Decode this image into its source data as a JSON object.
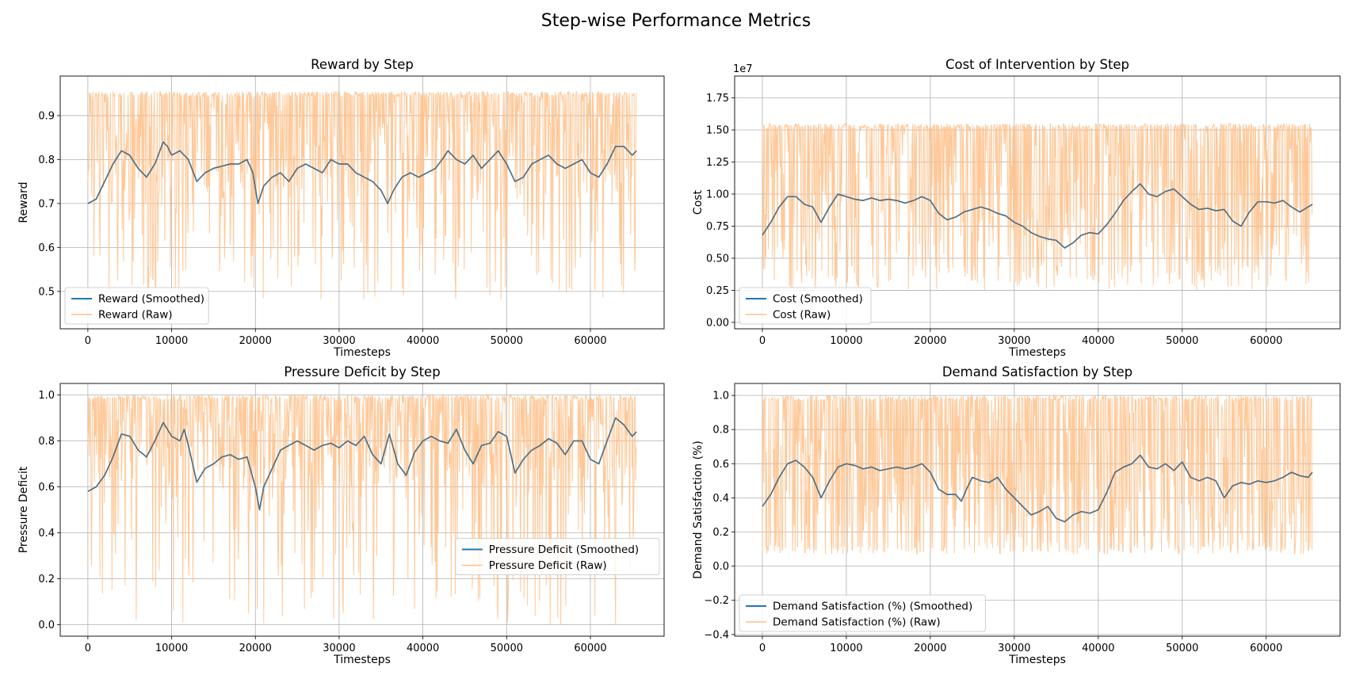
{
  "figure": {
    "title": "Step-wise Performance Metrics",
    "colors": {
      "smoothed": "#1f77b4",
      "raw": "#ffbe86",
      "overlap": "#4f7184",
      "grid": "#b0b0b0"
    }
  },
  "chart_data": [
    {
      "type": "line",
      "title": "Reward by Step",
      "xlabel": "Timesteps",
      "ylabel": "Reward",
      "offset_label": "",
      "xlim": [
        -3300,
        68800
      ],
      "ylim": [
        0.415,
        0.99
      ],
      "xticks": [
        0,
        10000,
        20000,
        30000,
        40000,
        50000,
        60000
      ],
      "yticks": [
        0.5,
        0.6,
        0.7,
        0.8,
        0.9
      ],
      "ytick_labels": [
        "0.5",
        "0.6",
        "0.7",
        "0.8",
        "0.9"
      ],
      "grid": true,
      "legend_position": "lower left",
      "raw_band": {
        "top": 0.955,
        "typical_low": 0.7,
        "deep_low": 0.48
      },
      "series": [
        {
          "name": "Reward (Smoothed)",
          "style": "smoothed",
          "x": [
            0,
            1000,
            2000,
            3000,
            4000,
            5000,
            6000,
            7000,
            8000,
            9000,
            9500,
            10000,
            11000,
            12000,
            13000,
            14000,
            15000,
            16000,
            17000,
            18000,
            19000,
            19700,
            20300,
            21000,
            22000,
            23000,
            24000,
            25000,
            26000,
            27000,
            28000,
            29000,
            30000,
            31000,
            32000,
            33000,
            34000,
            35000,
            35800,
            36500,
            37500,
            38500,
            39500,
            40500,
            41500,
            42300,
            43000,
            44000,
            45000,
            46000,
            47000,
            48000,
            49000,
            50000,
            51000,
            52000,
            53000,
            54000,
            55000,
            56000,
            57000,
            58000,
            59000,
            60000,
            61000,
            62000,
            63000,
            64000,
            65000,
            65500
          ],
          "values": [
            0.7,
            0.71,
            0.75,
            0.79,
            0.82,
            0.81,
            0.78,
            0.76,
            0.79,
            0.84,
            0.83,
            0.81,
            0.82,
            0.8,
            0.75,
            0.77,
            0.78,
            0.785,
            0.79,
            0.79,
            0.8,
            0.77,
            0.7,
            0.74,
            0.76,
            0.77,
            0.75,
            0.78,
            0.79,
            0.78,
            0.77,
            0.8,
            0.79,
            0.79,
            0.77,
            0.76,
            0.75,
            0.73,
            0.7,
            0.73,
            0.76,
            0.77,
            0.76,
            0.77,
            0.78,
            0.8,
            0.82,
            0.8,
            0.79,
            0.81,
            0.78,
            0.8,
            0.82,
            0.79,
            0.75,
            0.76,
            0.79,
            0.8,
            0.81,
            0.79,
            0.78,
            0.79,
            0.8,
            0.77,
            0.76,
            0.79,
            0.83,
            0.83,
            0.81,
            0.82
          ]
        },
        {
          "name": "Reward (Raw)",
          "style": "raw"
        }
      ]
    },
    {
      "type": "line",
      "title": "Cost of Intervention by Step",
      "xlabel": "Timesteps",
      "ylabel": "Cost",
      "offset_label": "1e7",
      "xlim": [
        -3300,
        68800
      ],
      "ylim": [
        -0.05,
        1.92
      ],
      "xticks": [
        0,
        10000,
        20000,
        30000,
        40000,
        50000,
        60000
      ],
      "yticks": [
        0,
        0.25,
        0.5,
        0.75,
        1.0,
        1.25,
        1.5,
        1.75
      ],
      "ytick_labels": [
        "0.00",
        "0.25",
        "0.50",
        "0.75",
        "1.00",
        "1.25",
        "1.50",
        "1.75"
      ],
      "grid": true,
      "legend_position": "lower left",
      "raw_band": {
        "top": 1.55,
        "typical_low": 0.45,
        "deep_low": 0.25
      },
      "series": [
        {
          "name": "Cost (Smoothed)",
          "style": "smoothed",
          "x": [
            0,
            1000,
            2000,
            3000,
            4000,
            5000,
            6000,
            7000,
            8000,
            9000,
            10000,
            11000,
            12000,
            13000,
            14000,
            15000,
            16000,
            17000,
            18000,
            19000,
            20000,
            21000,
            22000,
            23000,
            24000,
            25000,
            26000,
            27000,
            28000,
            29000,
            30000,
            31000,
            32000,
            33000,
            34000,
            35000,
            36000,
            37000,
            38000,
            39000,
            40000,
            41000,
            42000,
            43000,
            44000,
            45000,
            46000,
            47000,
            48000,
            49000,
            50000,
            51000,
            52000,
            53000,
            54000,
            55000,
            56000,
            57000,
            58000,
            59000,
            60000,
            61000,
            62000,
            63000,
            64000,
            65000,
            65500
          ],
          "values": [
            0.68,
            0.78,
            0.9,
            0.98,
            0.98,
            0.92,
            0.9,
            0.78,
            0.9,
            1.0,
            0.98,
            0.96,
            0.95,
            0.97,
            0.95,
            0.96,
            0.95,
            0.93,
            0.95,
            0.98,
            0.95,
            0.85,
            0.8,
            0.82,
            0.86,
            0.88,
            0.9,
            0.88,
            0.85,
            0.83,
            0.78,
            0.75,
            0.7,
            0.67,
            0.65,
            0.64,
            0.58,
            0.62,
            0.68,
            0.7,
            0.69,
            0.76,
            0.85,
            0.95,
            1.02,
            1.08,
            1.0,
            0.98,
            1.02,
            1.04,
            0.98,
            0.92,
            0.88,
            0.89,
            0.87,
            0.88,
            0.79,
            0.75,
            0.86,
            0.94,
            0.94,
            0.93,
            0.95,
            0.9,
            0.86,
            0.9,
            0.92
          ]
        },
        {
          "name": "Cost (Raw)",
          "style": "raw"
        }
      ]
    },
    {
      "type": "line",
      "title": "Pressure Deficit by Step",
      "xlabel": "Timesteps",
      "ylabel": "Pressure Deficit",
      "offset_label": "",
      "xlim": [
        -3300,
        68800
      ],
      "ylim": [
        -0.05,
        1.05
      ],
      "xticks": [
        0,
        10000,
        20000,
        30000,
        40000,
        50000,
        60000
      ],
      "yticks": [
        0,
        0.2,
        0.4,
        0.6,
        0.8,
        1.0
      ],
      "ytick_labels": [
        "0.0",
        "0.2",
        "0.4",
        "0.6",
        "0.8",
        "1.0"
      ],
      "grid": true,
      "legend_position": "center right",
      "raw_band": {
        "top": 1.0,
        "typical_low": 0.6,
        "deep_low": 0.0
      },
      "series": [
        {
          "name": "Pressure Deficit (Smoothed)",
          "style": "smoothed",
          "x": [
            0,
            1000,
            2000,
            3000,
            4000,
            5000,
            6000,
            7000,
            8000,
            9000,
            10000,
            11000,
            11500,
            12000,
            13000,
            14000,
            15000,
            16000,
            17000,
            18000,
            19000,
            20000,
            20500,
            21000,
            22000,
            23000,
            24000,
            25000,
            26000,
            27000,
            28000,
            29000,
            30000,
            31000,
            32000,
            33000,
            34000,
            35000,
            36000,
            37000,
            38000,
            39000,
            40000,
            41000,
            42000,
            43000,
            44000,
            45000,
            46000,
            47000,
            48000,
            49000,
            50000,
            51000,
            52000,
            53000,
            54000,
            55000,
            56000,
            57000,
            58000,
            59000,
            60000,
            61000,
            62000,
            63000,
            64000,
            65000,
            65500
          ],
          "values": [
            0.58,
            0.6,
            0.65,
            0.73,
            0.83,
            0.82,
            0.76,
            0.73,
            0.8,
            0.88,
            0.82,
            0.8,
            0.85,
            0.78,
            0.62,
            0.68,
            0.7,
            0.73,
            0.74,
            0.72,
            0.73,
            0.6,
            0.5,
            0.6,
            0.68,
            0.76,
            0.78,
            0.8,
            0.78,
            0.76,
            0.78,
            0.79,
            0.77,
            0.8,
            0.78,
            0.82,
            0.74,
            0.7,
            0.83,
            0.7,
            0.65,
            0.75,
            0.8,
            0.82,
            0.8,
            0.79,
            0.85,
            0.76,
            0.7,
            0.78,
            0.79,
            0.84,
            0.82,
            0.66,
            0.72,
            0.76,
            0.78,
            0.81,
            0.79,
            0.74,
            0.8,
            0.8,
            0.72,
            0.7,
            0.8,
            0.9,
            0.87,
            0.82,
            0.84
          ]
        },
        {
          "name": "Pressure Deficit (Raw)",
          "style": "raw"
        }
      ]
    },
    {
      "type": "line",
      "title": "Demand Satisfaction by Step",
      "xlabel": "Timesteps",
      "ylabel": "Demand Satisfaction (%)",
      "offset_label": "",
      "xlim": [
        -3300,
        68800
      ],
      "ylim": [
        -0.41,
        1.07
      ],
      "xticks": [
        0,
        10000,
        20000,
        30000,
        40000,
        50000,
        60000
      ],
      "yticks": [
        -0.4,
        -0.2,
        0,
        0.2,
        0.4,
        0.6,
        0.8,
        1.0
      ],
      "ytick_labels": [
        "−0.4",
        "−0.2",
        "0.0",
        "0.2",
        "0.4",
        "0.6",
        "0.8",
        "1.0"
      ],
      "grid": true,
      "legend_position": "lower left",
      "raw_band": {
        "top": 1.0,
        "typical_low": 0.12,
        "deep_low": 0.07
      },
      "series": [
        {
          "name": "Demand Satisfaction (%) (Smoothed)",
          "style": "smoothed",
          "x": [
            0,
            1000,
            2000,
            3000,
            4000,
            5000,
            6000,
            7000,
            8000,
            9000,
            10000,
            11000,
            12000,
            13000,
            14000,
            15000,
            16000,
            17000,
            18000,
            19000,
            20000,
            21000,
            22000,
            23000,
            23700,
            24300,
            25000,
            26000,
            27000,
            28000,
            29000,
            30000,
            31000,
            32000,
            33000,
            34000,
            35000,
            36000,
            37000,
            38000,
            39000,
            40000,
            41000,
            42000,
            43000,
            44000,
            45000,
            46000,
            47000,
            48000,
            49000,
            50000,
            51000,
            52000,
            53000,
            54000,
            55000,
            56000,
            57000,
            58000,
            59000,
            60000,
            61000,
            62000,
            63000,
            64000,
            65000,
            65500
          ],
          "values": [
            0.35,
            0.42,
            0.52,
            0.6,
            0.62,
            0.58,
            0.52,
            0.4,
            0.5,
            0.58,
            0.6,
            0.59,
            0.57,
            0.58,
            0.56,
            0.57,
            0.58,
            0.57,
            0.58,
            0.6,
            0.55,
            0.45,
            0.42,
            0.42,
            0.38,
            0.45,
            0.52,
            0.5,
            0.49,
            0.52,
            0.45,
            0.4,
            0.35,
            0.3,
            0.32,
            0.35,
            0.28,
            0.26,
            0.3,
            0.32,
            0.31,
            0.33,
            0.43,
            0.55,
            0.58,
            0.6,
            0.65,
            0.58,
            0.57,
            0.6,
            0.56,
            0.61,
            0.52,
            0.5,
            0.52,
            0.5,
            0.4,
            0.47,
            0.49,
            0.48,
            0.5,
            0.49,
            0.5,
            0.52,
            0.55,
            0.53,
            0.52,
            0.55
          ]
        },
        {
          "name": "Demand Satisfaction (%) (Raw)",
          "style": "raw"
        }
      ]
    }
  ]
}
